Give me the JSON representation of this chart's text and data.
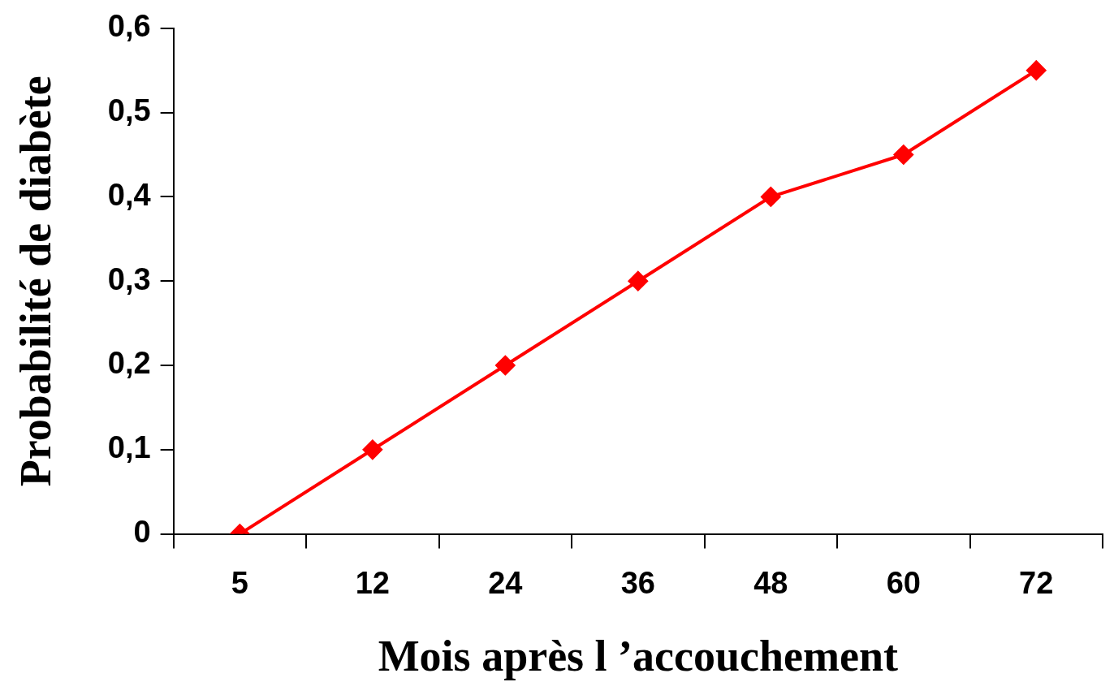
{
  "chart_data": {
    "type": "line",
    "xlabel": "Mois après l ’accouchement",
    "ylabel": "Probabilité de diabète",
    "categories": [
      "5",
      "12",
      "24",
      "36",
      "48",
      "60",
      "72"
    ],
    "series": [
      {
        "color": "#ff0000",
        "values": [
          0,
          0.1,
          0.2,
          0.3,
          0.4,
          0.45,
          0.55
        ]
      }
    ],
    "ylim": [
      0,
      0.6
    ],
    "yticks": [
      0,
      {
        "value": 0.1,
        "label": "0,1"
      },
      {
        "value": 0.2,
        "label": "0,2"
      },
      {
        "value": 0.3,
        "label": "0,3"
      },
      {
        "value": 0.4,
        "label": "0,4"
      },
      {
        "value": 0.5,
        "label": "0,5"
      },
      {
        "value": 0.6,
        "label": "0,6"
      }
    ],
    "marker": "diamond",
    "line_style": "solid"
  }
}
